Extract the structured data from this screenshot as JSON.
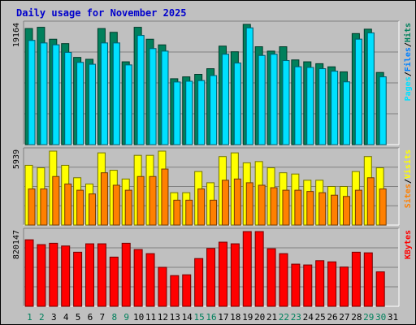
{
  "title": "Daily usage for November 2025",
  "colors": {
    "background": "#c0c0c0",
    "title": "#0000cc",
    "hits": "#00805c",
    "files": "#0080ff",
    "pages": "#00e0ff",
    "visits": "#ffff00",
    "sites": "#ff8000",
    "kbytes": "#ff0000"
  },
  "chart_data": [
    {
      "type": "bar",
      "panel": "top",
      "categories": [
        "1",
        "2",
        "3",
        "4",
        "5",
        "6",
        "7",
        "8",
        "9",
        "10",
        "11",
        "12",
        "13",
        "14",
        "15",
        "16",
        "17",
        "18",
        "19",
        "20",
        "21",
        "22",
        "23",
        "24",
        "25",
        "26",
        "27",
        "28",
        "29",
        "30",
        "31"
      ],
      "max_label": "19164",
      "ymax": 19164,
      "right_labels": [
        {
          "text": "Hits",
          "color": "#00805c"
        },
        {
          "text": "Files",
          "color": "#0080ff"
        },
        {
          "text": "Pages",
          "color": "#00e0ff"
        }
      ],
      "series": [
        {
          "name": "Hits",
          "values": [
            18500,
            18700,
            16800,
            16100,
            13900,
            13600,
            18500,
            17900,
            13200,
            18700,
            16800,
            15900,
            10500,
            10800,
            11200,
            12100,
            15700,
            14800,
            19164,
            15600,
            14900,
            15600,
            13500,
            13200,
            12900,
            12400,
            11600,
            17700,
            18400,
            11500,
            0
          ]
        },
        {
          "name": "Files",
          "values": [
            16600,
            16200,
            15900,
            14700,
            13100,
            12800,
            16200,
            16200,
            12700,
            17400,
            15300,
            14900,
            9980,
            10100,
            10200,
            11000,
            14400,
            13000,
            18600,
            14200,
            14400,
            13400,
            12400,
            12300,
            12100,
            11700,
            10000,
            16800,
            17800,
            10800,
            0
          ]
        },
        {
          "name": "Pages",
          "values": [
            16600,
            16200,
            15900,
            14700,
            13100,
            12800,
            16200,
            16200,
            12700,
            17400,
            15300,
            14900,
            9980,
            10100,
            10200,
            11000,
            14400,
            13000,
            18600,
            14200,
            14400,
            13400,
            12400,
            12300,
            12100,
            11700,
            10000,
            16800,
            17800,
            10800,
            0
          ]
        }
      ]
    },
    {
      "type": "bar",
      "panel": "middle",
      "categories": [
        "1",
        "2",
        "3",
        "4",
        "5",
        "6",
        "7",
        "8",
        "9",
        "10",
        "11",
        "12",
        "13",
        "14",
        "15",
        "16",
        "17",
        "18",
        "19",
        "20",
        "21",
        "22",
        "23",
        "24",
        "25",
        "26",
        "27",
        "28",
        "29",
        "30",
        "31"
      ],
      "max_label": "5939",
      "ymax": 5939,
      "right_labels": [
        {
          "text": "Visits",
          "color": "#ffff00"
        },
        {
          "text": "Sites",
          "color": "#ff8000"
        }
      ],
      "series": [
        {
          "name": "Visits",
          "values": [
            4800,
            4600,
            5939,
            4800,
            3800,
            3300,
            5800,
            4400,
            3700,
            5600,
            5600,
            5939,
            2600,
            2600,
            4300,
            3400,
            5500,
            5800,
            5000,
            5100,
            4600,
            4200,
            4100,
            3600,
            3600,
            3100,
            3100,
            4300,
            5500,
            4600,
            0
          ]
        },
        {
          "name": "Sites",
          "values": [
            2900,
            2900,
            3900,
            3300,
            2800,
            2500,
            4200,
            3200,
            2800,
            3900,
            3900,
            4500,
            2000,
            2000,
            2900,
            2000,
            3600,
            3700,
            3400,
            3200,
            3000,
            2800,
            2800,
            2700,
            2600,
            2400,
            2300,
            2800,
            3800,
            2900,
            0
          ]
        }
      ]
    },
    {
      "type": "bar",
      "panel": "bottom",
      "categories": [
        "1",
        "2",
        "3",
        "4",
        "5",
        "6",
        "7",
        "8",
        "9",
        "10",
        "11",
        "12",
        "13",
        "14",
        "15",
        "16",
        "17",
        "18",
        "19",
        "20",
        "21",
        "22",
        "23",
        "24",
        "25",
        "26",
        "27",
        "28",
        "29",
        "30",
        "31"
      ],
      "max_label": "820147",
      "ymax": 820147,
      "right_labels": [
        {
          "text": "KBytes",
          "color": "#ff0000"
        }
      ],
      "series": [
        {
          "name": "KBytes",
          "values": [
            730000,
            677000,
            692000,
            662000,
            594000,
            686000,
            686000,
            540000,
            692000,
            623000,
            578000,
            428000,
            337000,
            346000,
            524000,
            635000,
            704000,
            686000,
            820147,
            820147,
            632000,
            578000,
            463000,
            454000,
            501000,
            488000,
            431000,
            594000,
            587000,
            378000,
            0
          ]
        }
      ]
    }
  ],
  "x_labels": [
    {
      "text": "1",
      "weekend": true
    },
    {
      "text": "2",
      "weekend": true
    },
    {
      "text": "3",
      "weekend": false
    },
    {
      "text": "4",
      "weekend": false
    },
    {
      "text": "5",
      "weekend": false
    },
    {
      "text": "6",
      "weekend": false
    },
    {
      "text": "7",
      "weekend": false
    },
    {
      "text": "8",
      "weekend": true
    },
    {
      "text": "9",
      "weekend": true
    },
    {
      "text": "10",
      "weekend": false
    },
    {
      "text": "11",
      "weekend": false
    },
    {
      "text": "12",
      "weekend": false
    },
    {
      "text": "13",
      "weekend": false
    },
    {
      "text": "14",
      "weekend": false
    },
    {
      "text": "15",
      "weekend": true
    },
    {
      "text": "16",
      "weekend": true
    },
    {
      "text": "17",
      "weekend": false
    },
    {
      "text": "18",
      "weekend": false
    },
    {
      "text": "19",
      "weekend": false
    },
    {
      "text": "20",
      "weekend": false
    },
    {
      "text": "21",
      "weekend": false
    },
    {
      "text": "22",
      "weekend": true
    },
    {
      "text": "23",
      "weekend": true
    },
    {
      "text": "24",
      "weekend": false
    },
    {
      "text": "25",
      "weekend": false
    },
    {
      "text": "26",
      "weekend": false
    },
    {
      "text": "27",
      "weekend": false
    },
    {
      "text": "28",
      "weekend": false
    },
    {
      "text": "29",
      "weekend": true
    },
    {
      "text": "30",
      "weekend": true
    },
    {
      "text": "31",
      "weekend": false
    }
  ]
}
